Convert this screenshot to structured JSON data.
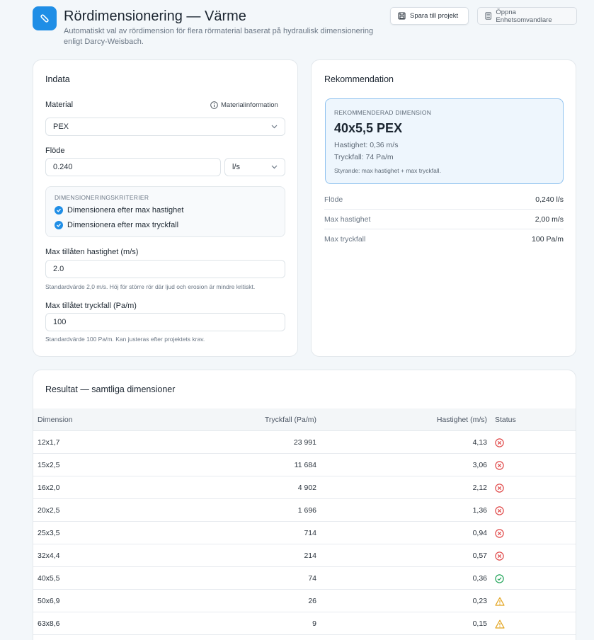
{
  "header": {
    "title": "Rördimensionering — Värme",
    "subtitle": "Automatiskt val av rördimension för flera rörmaterial baserat på hydraulisk dimensionering enligt Darcy-Weisbach.",
    "save_label": "Spara till projekt",
    "converter_label": "Öppna Enhetsomvandlare"
  },
  "input": {
    "title": "Indata",
    "material_label": "Material",
    "material_info": "Materialinformation",
    "material_value": "PEX",
    "flow_label": "Flöde",
    "flow_value": "0.240",
    "flow_unit": "l/s",
    "criteria": {
      "heading": "DIMENSIONERINGSKRITERIER",
      "items": [
        "Dimensionera efter max hastighet",
        "Dimensionera efter max tryckfall"
      ]
    },
    "max_velocity_label": "Max tillåten hastighet (m/s)",
    "max_velocity_value": "2.0",
    "max_velocity_hint": "Standardvärde 2,0 m/s. Höj för större rör där ljud och erosion är mindre kritiskt.",
    "max_pressure_label": "Max tillåtet tryckfall (Pa/m)",
    "max_pressure_value": "100",
    "max_pressure_hint": "Standardvärde 100 Pa/m. Kan justeras efter projektets krav."
  },
  "recommendation": {
    "title": "Rekommendation",
    "box_heading": "REKOMMENDERAD DIMENSION",
    "dimension": "40x5,5 PEX",
    "velocity": "Hastighet: 0,36 m/s",
    "pressure": "Tryckfall: 74 Pa/m",
    "governing": "Styrande: max hastighet + max tryckfall.",
    "summary": [
      {
        "key": "Flöde",
        "value": "0,240 l/s"
      },
      {
        "key": "Max hastighet",
        "value": "2,00 m/s"
      },
      {
        "key": "Max tryckfall",
        "value": "100 Pa/m"
      }
    ]
  },
  "results": {
    "title": "Resultat — samtliga dimensioner",
    "columns": [
      "Dimension",
      "Tryckfall (Pa/m)",
      "Hastighet (m/s)",
      "Status"
    ],
    "rows": [
      {
        "dimension": "12x1,7",
        "pressure": "23 991",
        "velocity": "4,13",
        "status": "fail"
      },
      {
        "dimension": "15x2,5",
        "pressure": "11 684",
        "velocity": "3,06",
        "status": "fail"
      },
      {
        "dimension": "16x2,0",
        "pressure": "4 902",
        "velocity": "2,12",
        "status": "fail"
      },
      {
        "dimension": "20x2,5",
        "pressure": "1 696",
        "velocity": "1,36",
        "status": "fail"
      },
      {
        "dimension": "25x3,5",
        "pressure": "714",
        "velocity": "0,94",
        "status": "fail"
      },
      {
        "dimension": "32x4,4",
        "pressure": "214",
        "velocity": "0,57",
        "status": "fail"
      },
      {
        "dimension": "40x5,5",
        "pressure": "74",
        "velocity": "0,36",
        "status": "ok"
      },
      {
        "dimension": "50x6,9",
        "pressure": "26",
        "velocity": "0,23",
        "status": "warn"
      },
      {
        "dimension": "63x8,6",
        "pressure": "9",
        "velocity": "0,15",
        "status": "warn"
      }
    ]
  },
  "colors": {
    "accent": "#1f8ee6",
    "fail": "#e04848",
    "ok": "#23a55a",
    "warn": "#e2a21a"
  }
}
